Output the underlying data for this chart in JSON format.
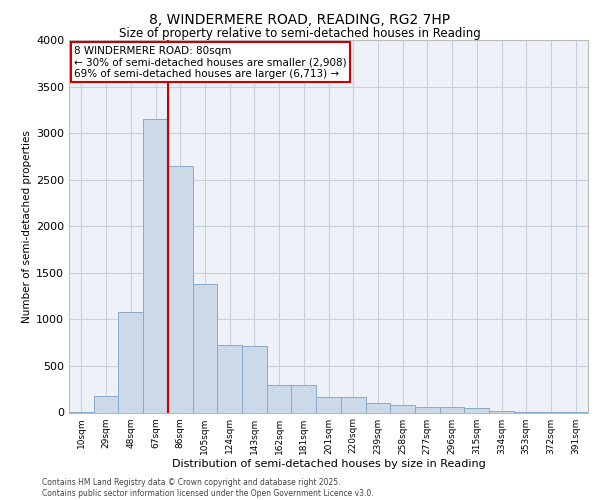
{
  "title_line1": "8, WINDERMERE ROAD, READING, RG2 7HP",
  "title_line2": "Size of property relative to semi-detached houses in Reading",
  "xlabel": "Distribution of semi-detached houses by size in Reading",
  "ylabel": "Number of semi-detached properties",
  "categories": [
    "10sqm",
    "29sqm",
    "48sqm",
    "67sqm",
    "86sqm",
    "105sqm",
    "124sqm",
    "143sqm",
    "162sqm",
    "181sqm",
    "201sqm",
    "220sqm",
    "239sqm",
    "258sqm",
    "277sqm",
    "296sqm",
    "315sqm",
    "334sqm",
    "353sqm",
    "372sqm",
    "391sqm"
  ],
  "values": [
    10,
    175,
    1080,
    3150,
    2650,
    1380,
    730,
    710,
    300,
    295,
    165,
    165,
    100,
    80,
    60,
    55,
    45,
    15,
    5,
    2,
    1
  ],
  "bar_color": "#ccd9e8",
  "bar_edge_color": "#88aac8",
  "property_bin_index": 3,
  "property_label": "8 WINDERMERE ROAD: 80sqm",
  "smaller_pct": "30%",
  "smaller_count": "2,908",
  "larger_pct": "69%",
  "larger_count": "6,713",
  "annotation_box_color": "#cc0000",
  "red_line_color": "#cc0000",
  "ylim": [
    0,
    4000
  ],
  "yticks": [
    0,
    500,
    1000,
    1500,
    2000,
    2500,
    3000,
    3500,
    4000
  ],
  "grid_color": "#c8d0dc",
  "background_color": "#eef2f8",
  "footer_line1": "Contains HM Land Registry data © Crown copyright and database right 2025.",
  "footer_line2": "Contains public sector information licensed under the Open Government Licence v3.0."
}
